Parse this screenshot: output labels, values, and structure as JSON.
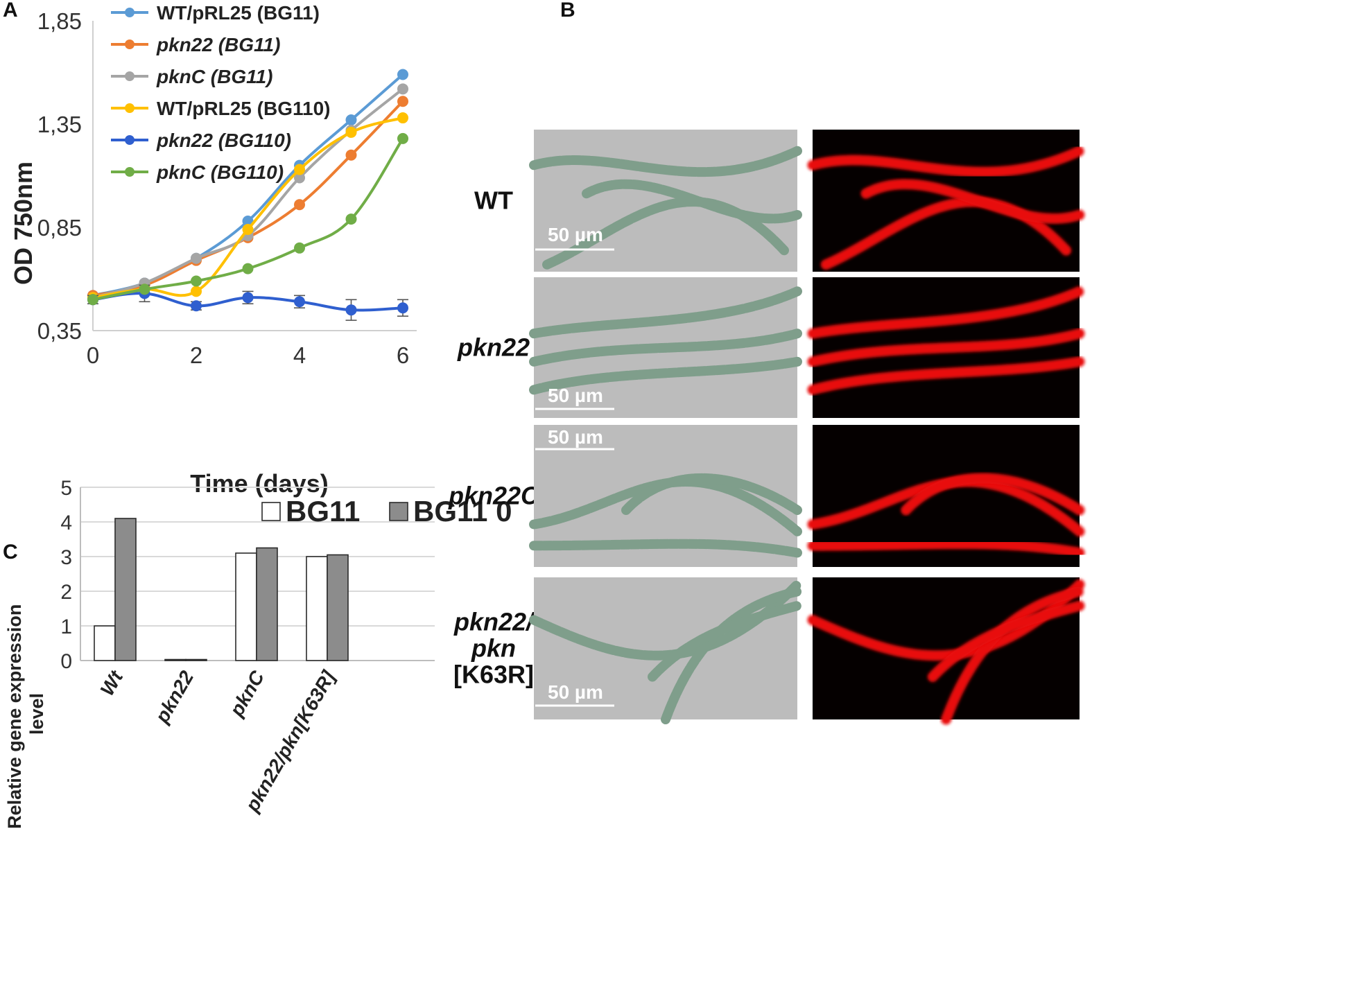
{
  "panels": {
    "a": "A",
    "b": "B",
    "c": "C"
  },
  "chart_data": [
    {
      "type": "line",
      "xlabel": "Time (days)",
      "ylabel": "OD 750nm",
      "x": [
        0,
        1,
        2,
        3,
        4,
        5,
        6
      ],
      "xticks": [
        "0",
        "2",
        "4",
        "6"
      ],
      "yticks": [
        "0,35",
        "0,85",
        "1,35",
        "1,85"
      ],
      "ytick_values": [
        0.35,
        0.85,
        1.35,
        1.85
      ],
      "xlim": [
        0,
        6
      ],
      "ylim": [
        0.35,
        1.85
      ],
      "legend_position": "top",
      "series": [
        {
          "name": "WT/pRL25 (BG11)",
          "color": "#5B9BD5",
          "italic": false,
          "values": [
            0.52,
            0.58,
            0.7,
            0.88,
            1.15,
            1.37,
            1.59
          ]
        },
        {
          "name": "pkn22 (BG11)",
          "color": "#ED7D31",
          "italic": true,
          "values": [
            0.52,
            0.57,
            0.69,
            0.8,
            0.96,
            1.2,
            1.46
          ]
        },
        {
          "name": "pknC (BG11)",
          "color": "#A5A5A5",
          "italic": true,
          "values": [
            0.51,
            0.58,
            0.7,
            0.81,
            1.09,
            1.32,
            1.52
          ]
        },
        {
          "name": "WT/pRL25 (BG110)",
          "color": "#FFC000",
          "italic": false,
          "values": [
            0.51,
            0.55,
            0.54,
            0.84,
            1.13,
            1.31,
            1.38
          ]
        },
        {
          "name": "pkn22 (BG110)",
          "color": "#2F5FCF",
          "italic": true,
          "values": [
            0.5,
            0.53,
            0.47,
            0.51,
            0.49,
            0.45,
            0.46
          ],
          "error": [
            0.02,
            0.04,
            0.02,
            0.03,
            0.03,
            0.05,
            0.04
          ]
        },
        {
          "name": "pknC (BG110)",
          "color": "#70AD47",
          "italic": true,
          "values": [
            0.5,
            0.55,
            0.59,
            0.65,
            0.75,
            0.89,
            1.28
          ]
        }
      ]
    },
    {
      "type": "bar",
      "ylabel": "Relative gene expression level",
      "categories": [
        "Wt",
        "pkn22",
        "pknC",
        "pkn22/pkn[K63R]"
      ],
      "yticks": [
        "0",
        "1",
        "2",
        "3",
        "4",
        "5"
      ],
      "ylim": [
        0,
        5
      ],
      "grid": true,
      "legend_position": "top-right",
      "series": [
        {
          "name": "BG11",
          "color": "#ffffff",
          "values": [
            1.0,
            0.03,
            3.1,
            3.0
          ]
        },
        {
          "name": "BG11 0",
          "color": "#8C8C8C",
          "values": [
            4.1,
            0.03,
            3.25,
            3.05
          ]
        }
      ]
    }
  ],
  "micrographs": {
    "scale_bar": "50 µm",
    "rows": [
      {
        "label_lines": [
          "WT"
        ],
        "italic": false
      },
      {
        "label_lines": [
          "pkn22"
        ],
        "italic": true
      },
      {
        "label_lines": [
          "pkn22C"
        ],
        "italic": true
      },
      {
        "label_lines": [
          "pkn22/",
          "pkn",
          "[K63R]"
        ],
        "italic": true
      }
    ],
    "colors": {
      "brightfield_bg": "#bcbcbc",
      "filament": "#7f9e8b",
      "fluor_bg": "#050000",
      "fluor": "#e81010"
    }
  }
}
